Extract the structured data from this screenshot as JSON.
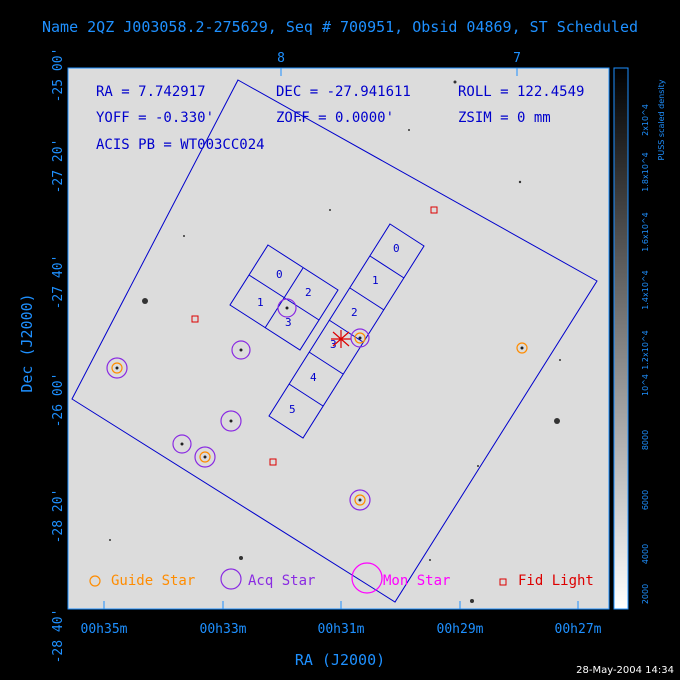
{
  "header": {
    "title": "Name 2QZ J003058.2-275629, Seq # 700951, Obsid 04869, ST Scheduled"
  },
  "info": {
    "ra": "RA = 7.742917",
    "dec": "DEC = -27.941611",
    "roll": "ROLL = 122.4549",
    "yoff": "YOFF =  -0.330'",
    "zoff": "ZOFF =   0.0000'",
    "zsim": "ZSIM = 0 mm",
    "acis": "ACIS PB = WT003CC024"
  },
  "axes": {
    "x_title": "RA (J2000)",
    "y_title": "Dec (J2000)",
    "x_ticks": [
      "00h35m",
      "00h33m",
      "00h31m",
      "00h29m",
      "00h27m"
    ],
    "y_ticks": [
      "-25 00'",
      "-27 20'",
      "-27 40'",
      "-26 00'",
      "-28 20'",
      "-28 40'"
    ],
    "top_ticks": [
      "8",
      "7"
    ]
  },
  "chips": {
    "imaging": [
      "0",
      "2",
      "1",
      "3"
    ],
    "spectro": [
      "0",
      "1",
      "2",
      "3",
      "4",
      "5"
    ]
  },
  "legend": {
    "guide": "Guide Star",
    "acq": "Acq Star",
    "mon": "Mon Star",
    "fid": "Fid Light"
  },
  "colorbar": {
    "title": "PUSS scaled density",
    "labels": [
      "2x10^4",
      "1.8x10^4",
      "1.6x10^4",
      "1.4x10^4",
      "1.2x10^4",
      "10^4",
      "8000",
      "6000",
      "4000",
      "2000"
    ]
  },
  "timestamp": "28-May-2004 14:34",
  "colors": {
    "axis": "#1e90ff",
    "field": "#0000cc",
    "guide": "#ff8c00",
    "acq": "#8a2be2",
    "mon": "#ff00ff",
    "fid": "#dd0000"
  }
}
